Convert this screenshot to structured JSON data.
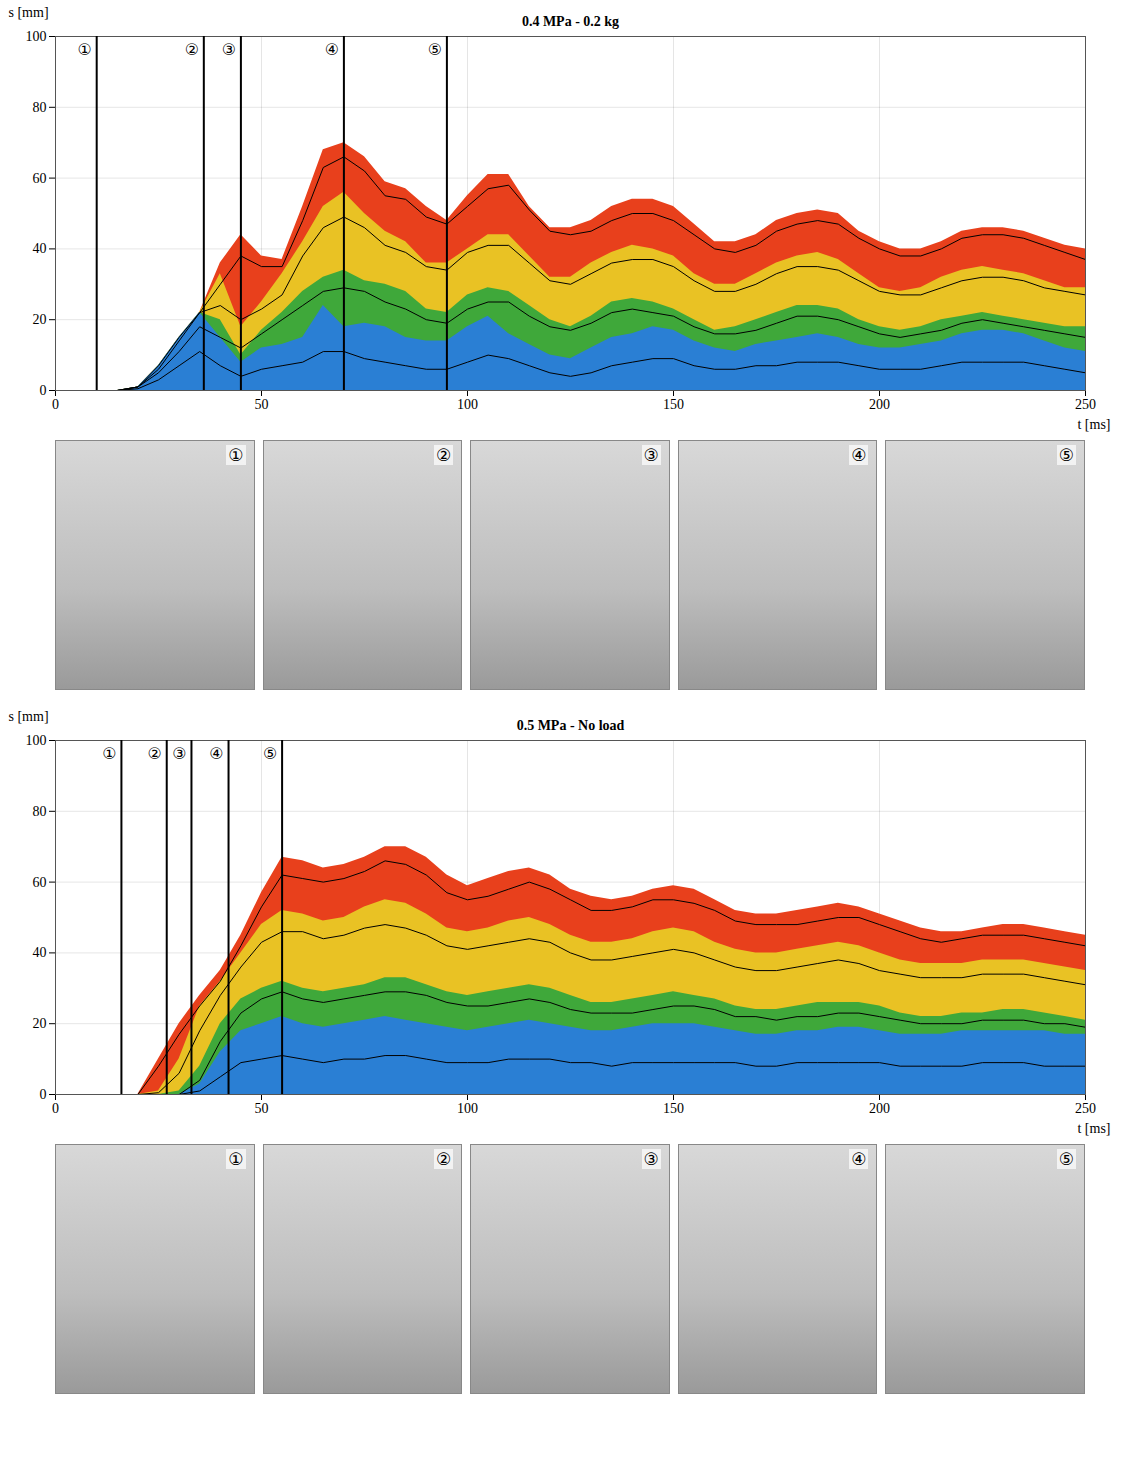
{
  "chart_data": [
    {
      "type": "area",
      "title": "0.4 MPa - 0.2 kg",
      "x_label": "t [ms]",
      "y_label": "s [mm]",
      "xlim": [
        0,
        250
      ],
      "ylim": [
        0,
        100
      ],
      "xticks": [
        0,
        50,
        100,
        150,
        200,
        250
      ],
      "yticks": [
        0,
        20,
        40,
        60,
        80,
        100
      ],
      "grid": true,
      "stacked": false,
      "x": [
        0,
        5,
        10,
        15,
        20,
        25,
        30,
        35,
        40,
        45,
        50,
        55,
        60,
        65,
        70,
        75,
        80,
        85,
        90,
        95,
        100,
        105,
        110,
        115,
        120,
        125,
        130,
        135,
        140,
        145,
        150,
        155,
        160,
        165,
        170,
        175,
        180,
        185,
        190,
        195,
        200,
        205,
        210,
        215,
        220,
        225,
        230,
        235,
        240,
        245,
        250
      ],
      "series": [
        {
          "type": "area",
          "color": "#e8401c",
          "values": [
            0,
            0,
            0,
            0,
            1,
            7,
            15,
            22,
            36,
            44,
            38,
            37,
            52,
            68,
            70,
            66,
            59,
            57,
            52,
            48,
            55,
            61,
            61,
            52,
            46,
            46,
            48,
            52,
            54,
            54,
            52,
            47,
            42,
            42,
            44,
            48,
            50,
            51,
            50,
            45,
            42,
            40,
            40,
            42,
            45,
            46,
            46,
            45,
            43,
            41,
            40
          ]
        },
        {
          "type": "area",
          "color": "#e9c224",
          "values": [
            0,
            0,
            0,
            0,
            1,
            7,
            15,
            22,
            33,
            18,
            25,
            33,
            42,
            52,
            56,
            50,
            45,
            42,
            36,
            36,
            40,
            44,
            44,
            38,
            32,
            32,
            36,
            39,
            41,
            40,
            38,
            33,
            30,
            30,
            33,
            36,
            38,
            39,
            37,
            33,
            29,
            28,
            29,
            32,
            34,
            35,
            34,
            33,
            31,
            29,
            29
          ]
        },
        {
          "type": "area",
          "color": "#3fa83a",
          "values": [
            0,
            0,
            0,
            0,
            1,
            7,
            15,
            22,
            20,
            10,
            17,
            22,
            28,
            32,
            34,
            31,
            30,
            28,
            23,
            22,
            27,
            29,
            28,
            24,
            20,
            18,
            21,
            25,
            26,
            25,
            23,
            20,
            17,
            18,
            20,
            22,
            24,
            24,
            23,
            20,
            18,
            17,
            18,
            20,
            21,
            22,
            21,
            20,
            19,
            18,
            18
          ]
        },
        {
          "type": "area",
          "color": "#2a7fd4",
          "values": [
            0,
            0,
            0,
            0,
            1,
            7,
            15,
            22,
            15,
            8,
            12,
            13,
            15,
            24,
            18,
            19,
            18,
            15,
            14,
            14,
            18,
            21,
            16,
            13,
            10,
            9,
            12,
            15,
            16,
            18,
            17,
            14,
            12,
            11,
            13,
            14,
            15,
            16,
            15,
            13,
            12,
            12,
            13,
            14,
            16,
            17,
            17,
            16,
            14,
            12,
            11
          ]
        },
        {
          "type": "line",
          "color": "#000000",
          "values": [
            0,
            0,
            0,
            0,
            1,
            7,
            15,
            22,
            30,
            38,
            35,
            35,
            48,
            63,
            66,
            62,
            55,
            54,
            49,
            47,
            52,
            57,
            58,
            51,
            45,
            44,
            45,
            48,
            50,
            50,
            48,
            44,
            40,
            39,
            41,
            45,
            47,
            48,
            47,
            43,
            40,
            38,
            38,
            40,
            43,
            44,
            44,
            43,
            41,
            39,
            37
          ]
        },
        {
          "type": "line",
          "color": "#000000",
          "values": [
            0,
            0,
            0,
            0,
            1,
            6,
            14,
            22,
            24,
            20,
            23,
            27,
            38,
            46,
            49,
            46,
            41,
            39,
            35,
            34,
            39,
            41,
            41,
            36,
            31,
            30,
            33,
            36,
            37,
            37,
            35,
            31,
            28,
            28,
            30,
            33,
            35,
            35,
            34,
            31,
            28,
            27,
            27,
            29,
            31,
            32,
            32,
            31,
            29,
            28,
            27
          ]
        },
        {
          "type": "line",
          "color": "#000000",
          "values": [
            0,
            0,
            0,
            0,
            1,
            5,
            11,
            18,
            15,
            12,
            16,
            20,
            24,
            28,
            29,
            28,
            25,
            23,
            20,
            19,
            23,
            25,
            25,
            21,
            18,
            17,
            19,
            22,
            23,
            22,
            21,
            18,
            16,
            16,
            17,
            19,
            21,
            21,
            20,
            18,
            16,
            15,
            16,
            17,
            19,
            20,
            19,
            18,
            17,
            16,
            15
          ]
        },
        {
          "type": "line",
          "color": "#000000",
          "values": [
            0,
            0,
            0,
            0,
            0.5,
            3,
            7,
            11,
            7,
            4,
            6,
            7,
            8,
            11,
            11,
            9,
            8,
            7,
            6,
            6,
            8,
            10,
            9,
            7,
            5,
            4,
            5,
            7,
            8,
            9,
            9,
            7,
            6,
            6,
            7,
            7,
            8,
            8,
            8,
            7,
            6,
            6,
            6,
            7,
            8,
            8,
            8,
            8,
            7,
            6,
            5
          ]
        }
      ],
      "annotations": [
        {
          "x": 10,
          "label": "①"
        },
        {
          "x": 36,
          "label": "②"
        },
        {
          "x": 45,
          "label": "③"
        },
        {
          "x": 70,
          "label": "④"
        },
        {
          "x": 95,
          "label": "⑤"
        }
      ]
    },
    {
      "type": "area",
      "title": "0.5 MPa - No load",
      "x_label": "t [ms]",
      "y_label": "s [mm]",
      "xlim": [
        0,
        250
      ],
      "ylim": [
        0,
        100
      ],
      "xticks": [
        0,
        50,
        100,
        150,
        200,
        250
      ],
      "yticks": [
        0,
        20,
        40,
        60,
        80,
        100
      ],
      "grid": true,
      "stacked": false,
      "x": [
        0,
        5,
        10,
        15,
        20,
        25,
        30,
        35,
        40,
        45,
        50,
        55,
        60,
        65,
        70,
        75,
        80,
        85,
        90,
        95,
        100,
        105,
        110,
        115,
        120,
        125,
        130,
        135,
        140,
        145,
        150,
        155,
        160,
        165,
        170,
        175,
        180,
        185,
        190,
        195,
        200,
        205,
        210,
        215,
        220,
        225,
        230,
        235,
        240,
        245,
        250
      ],
      "series": [
        {
          "type": "area",
          "color": "#e8401c",
          "values": [
            0,
            0,
            0,
            0,
            0,
            10,
            20,
            28,
            35,
            45,
            57,
            67,
            66,
            64,
            65,
            67,
            70,
            70,
            67,
            62,
            59,
            61,
            63,
            64,
            62,
            58,
            56,
            55,
            56,
            58,
            59,
            58,
            55,
            52,
            51,
            51,
            52,
            53,
            54,
            53,
            51,
            49,
            47,
            46,
            46,
            47,
            48,
            48,
            47,
            46,
            45
          ]
        },
        {
          "type": "area",
          "color": "#e9c224",
          "values": [
            0,
            0,
            0,
            0,
            0,
            1,
            10,
            25,
            32,
            40,
            48,
            52,
            51,
            49,
            50,
            53,
            55,
            54,
            51,
            47,
            46,
            47,
            49,
            50,
            48,
            45,
            43,
            43,
            44,
            46,
            47,
            46,
            43,
            41,
            40,
            40,
            41,
            42,
            43,
            42,
            40,
            38,
            37,
            37,
            37,
            38,
            38,
            38,
            37,
            36,
            35
          ]
        },
        {
          "type": "area",
          "color": "#3fa83a",
          "values": [
            0,
            0,
            0,
            0,
            0,
            0,
            1,
            8,
            20,
            27,
            30,
            32,
            30,
            29,
            30,
            31,
            33,
            33,
            31,
            29,
            28,
            29,
            30,
            31,
            30,
            28,
            26,
            26,
            27,
            28,
            29,
            28,
            27,
            25,
            24,
            24,
            25,
            26,
            26,
            26,
            25,
            23,
            22,
            22,
            23,
            23,
            24,
            24,
            23,
            22,
            21
          ]
        },
        {
          "type": "area",
          "color": "#2a7fd4",
          "values": [
            0,
            0,
            0,
            0,
            0,
            0,
            0,
            3,
            12,
            18,
            20,
            22,
            20,
            19,
            20,
            21,
            22,
            21,
            20,
            19,
            18,
            19,
            20,
            21,
            20,
            19,
            18,
            18,
            19,
            20,
            20,
            20,
            19,
            18,
            17,
            17,
            18,
            18,
            19,
            19,
            18,
            17,
            17,
            17,
            18,
            18,
            18,
            18,
            18,
            17,
            17
          ]
        },
        {
          "type": "line",
          "color": "#000000",
          "values": [
            0,
            0,
            0,
            0,
            0,
            8,
            17,
            25,
            32,
            42,
            53,
            62,
            61,
            60,
            61,
            63,
            66,
            65,
            62,
            57,
            55,
            56,
            58,
            60,
            58,
            55,
            52,
            52,
            53,
            55,
            55,
            54,
            52,
            49,
            48,
            48,
            48,
            49,
            50,
            50,
            48,
            46,
            44,
            43,
            44,
            45,
            45,
            45,
            44,
            43,
            42
          ]
        },
        {
          "type": "line",
          "color": "#000000",
          "values": [
            0,
            0,
            0,
            0,
            0,
            0.5,
            6,
            18,
            28,
            36,
            43,
            46,
            46,
            44,
            45,
            47,
            48,
            47,
            45,
            42,
            41,
            42,
            43,
            44,
            43,
            40,
            38,
            38,
            39,
            40,
            41,
            40,
            38,
            36,
            35,
            35,
            36,
            37,
            38,
            37,
            35,
            34,
            33,
            33,
            33,
            34,
            34,
            34,
            33,
            32,
            31
          ]
        },
        {
          "type": "line",
          "color": "#000000",
          "values": [
            0,
            0,
            0,
            0,
            0,
            0,
            0,
            4,
            15,
            23,
            27,
            29,
            27,
            26,
            27,
            28,
            29,
            29,
            28,
            26,
            25,
            25,
            26,
            27,
            26,
            24,
            23,
            23,
            23,
            24,
            25,
            25,
            24,
            22,
            22,
            21,
            22,
            22,
            23,
            23,
            22,
            21,
            20,
            20,
            20,
            21,
            21,
            21,
            20,
            20,
            19
          ]
        },
        {
          "type": "line",
          "color": "#000000",
          "values": [
            0,
            0,
            0,
            0,
            0,
            0,
            0,
            1,
            5,
            9,
            10,
            11,
            10,
            9,
            10,
            10,
            11,
            11,
            10,
            9,
            9,
            9,
            10,
            10,
            10,
            9,
            9,
            8,
            9,
            9,
            9,
            9,
            9,
            9,
            8,
            8,
            9,
            9,
            9,
            9,
            9,
            8,
            8,
            8,
            8,
            9,
            9,
            9,
            8,
            8,
            8
          ]
        }
      ],
      "annotations": [
        {
          "x": 16,
          "label": "①"
        },
        {
          "x": 27,
          "label": "②"
        },
        {
          "x": 33,
          "label": "③"
        },
        {
          "x": 42,
          "label": "④"
        },
        {
          "x": 55,
          "label": "⑤"
        }
      ]
    }
  ]
}
